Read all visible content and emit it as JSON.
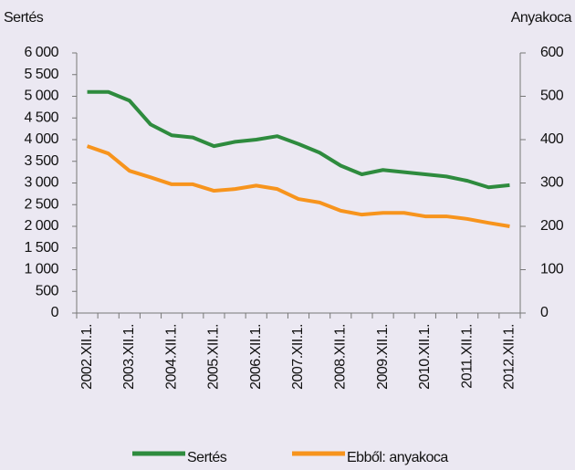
{
  "chart_data": {
    "type": "line",
    "y_axis_label": "Sertés",
    "y2_axis_label": "Anyakoca",
    "categories": [
      "2002.XII.1.",
      null,
      "2003.XII.1.",
      null,
      "2004.XII.1.",
      null,
      "2005.XII.1.",
      null,
      "2006.XII.1.",
      null,
      "2007.XII.1.",
      null,
      "2008.XII.1.",
      null,
      "2009.XII.1.",
      null,
      "2010.XII.1.",
      null,
      "2011.XII.1.",
      null,
      "2012.XII.1."
    ],
    "series": [
      {
        "name": "Sertés",
        "color": "#2e8b3e",
        "values": [
          5100,
          5100,
          4900,
          4350,
          4100,
          4050,
          3850,
          3950,
          4000,
          4080,
          3900,
          3700,
          3400,
          3200,
          3300,
          3250,
          3200,
          3150,
          3050,
          2900,
          2950
        ]
      },
      {
        "name": "Ebből: anyakoca",
        "color": "#f7941d",
        "axis": "y2",
        "values": [
          385,
          368,
          328,
          313,
          297,
          297,
          282,
          286,
          294,
          286,
          263,
          255,
          236,
          227,
          231,
          231,
          223,
          223,
          217,
          208,
          200
        ]
      }
    ],
    "ylim": [
      0,
      6000
    ],
    "yticks": [
      0,
      500,
      {
        "value": 1000,
        "label": "1 000"
      },
      {
        "value": 1500,
        "label": "1 500"
      },
      {
        "value": 2000,
        "label": "2 000"
      },
      {
        "value": 2500,
        "label": "2 500"
      },
      {
        "value": 3000,
        "label": "3 000"
      },
      {
        "value": 3500,
        "label": "3 500"
      },
      {
        "value": 4000,
        "label": "4 000"
      },
      {
        "value": 4500,
        "label": "4 500"
      },
      {
        "value": 5000,
        "label": "5 000"
      },
      {
        "value": 5500,
        "label": "5 500"
      },
      {
        "value": 6000,
        "label": "6 000"
      }
    ],
    "y2lim": [
      0,
      600
    ],
    "y2ticks": [
      0,
      100,
      200,
      300,
      400,
      500,
      600
    ],
    "legend": "bottom"
  }
}
